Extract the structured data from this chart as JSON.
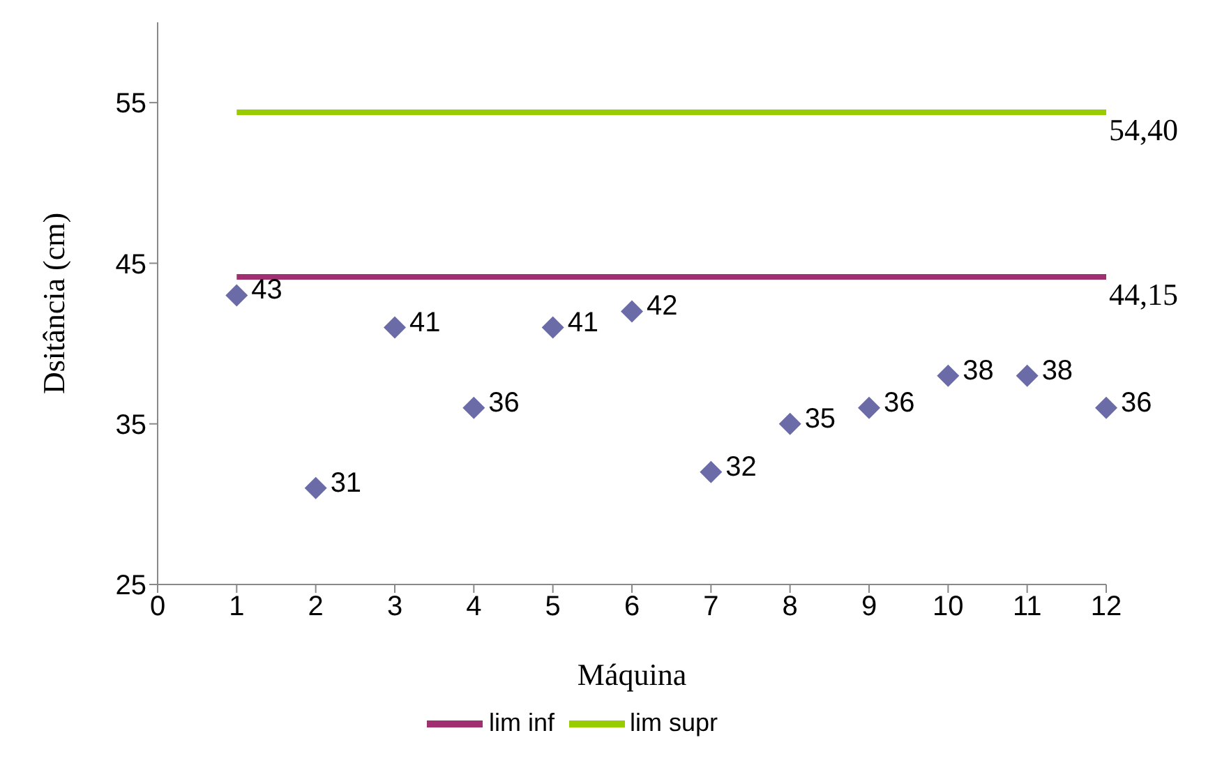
{
  "chart_data": {
    "type": "scatter",
    "xlabel": "Máquina",
    "ylabel": "Dsitância (cm)",
    "x": [
      1,
      2,
      3,
      4,
      5,
      6,
      7,
      8,
      9,
      10,
      11,
      12
    ],
    "xlim": [
      0,
      12
    ],
    "xticks": [
      0,
      1,
      2,
      3,
      4,
      5,
      6,
      7,
      8,
      9,
      10,
      11,
      12
    ],
    "ylim": [
      25,
      60
    ],
    "yticks": [
      25,
      35,
      45,
      55
    ],
    "grid": false,
    "legend": "bottom",
    "series": [
      {
        "color": "#6b6ba8",
        "marker": "diamond",
        "values": [
          43,
          31,
          41,
          36,
          41,
          42,
          32,
          35,
          36,
          38,
          38,
          36
        ],
        "value_labels": [
          "43",
          "31",
          "41",
          "36",
          "41",
          "42",
          "32",
          "35",
          "36",
          "38",
          "38",
          "36"
        ]
      },
      {
        "type": "line",
        "name": "lim inf",
        "color": "#a03070",
        "marker": "none",
        "values": [
          44.15,
          44.15,
          44.15,
          44.15,
          44.15,
          44.15,
          44.15,
          44.15,
          44.15,
          44.15,
          44.15,
          44.15
        ],
        "value_labels": [
          null,
          null,
          null,
          null,
          null,
          null,
          null,
          null,
          null,
          null,
          null,
          "44,15"
        ]
      },
      {
        "type": "line",
        "name": "lim supr",
        "color": "#99cc00",
        "marker": "none",
        "values": [
          54.4,
          54.4,
          54.4,
          54.4,
          54.4,
          54.4,
          54.4,
          54.4,
          54.4,
          54.4,
          54.4,
          54.4
        ],
        "value_labels": [
          null,
          null,
          null,
          null,
          null,
          null,
          null,
          null,
          null,
          null,
          null,
          "54,40"
        ]
      }
    ]
  }
}
